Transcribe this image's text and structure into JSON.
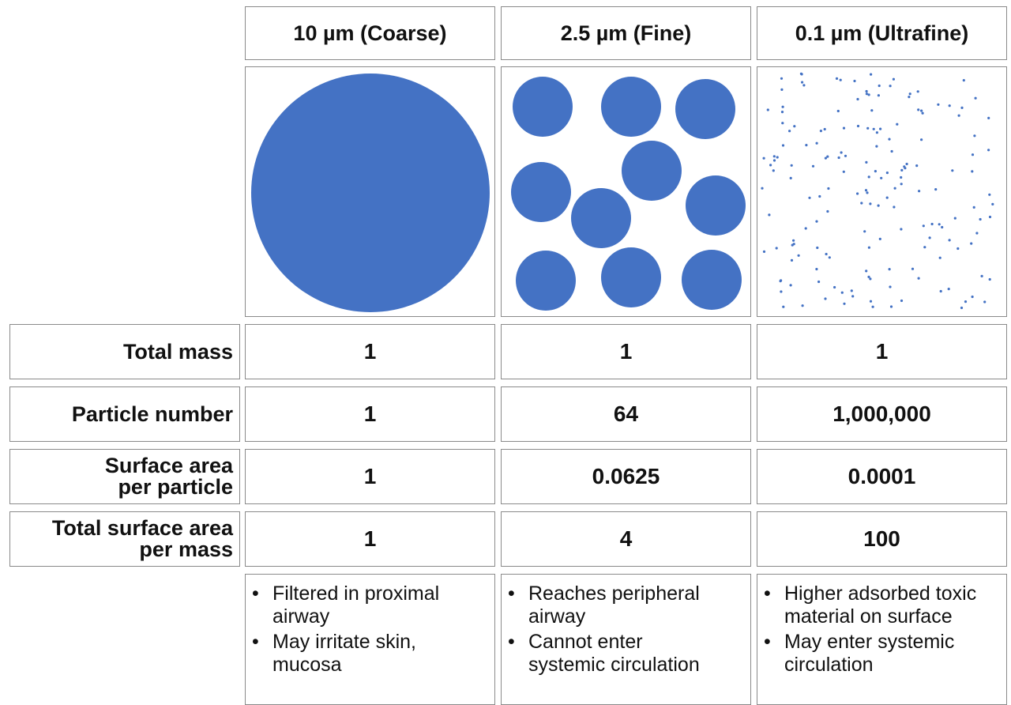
{
  "columns": [
    {
      "header": "10 µm (Coarse)"
    },
    {
      "header": "2.5 µm (Fine)"
    },
    {
      "header": "0.1 µm (Ultrafine)"
    }
  ],
  "particle_color": "#4472C4",
  "rows": [
    {
      "label": [
        "Total mass"
      ],
      "values": [
        "1",
        "1",
        "1"
      ]
    },
    {
      "label": [
        "Particle number"
      ],
      "values": [
        "1",
        "64",
        "1,000,000"
      ]
    },
    {
      "label": [
        "Surface area",
        "per particle"
      ],
      "values": [
        "1",
        "0.0625",
        "0.0001"
      ]
    },
    {
      "label": [
        "Total surface area",
        "per mass"
      ],
      "values": [
        "1",
        "4",
        "100"
      ]
    }
  ],
  "notes": [
    [
      [
        "Filtered in proximal",
        "airway"
      ],
      [
        "May irritate skin,",
        "mucosa"
      ]
    ],
    [
      [
        "Reaches peripheral",
        "airway"
      ],
      [
        "Cannot enter",
        "systemic circulation"
      ]
    ],
    [
      [
        "Higher adsorbed toxic",
        "material on surface"
      ],
      [
        "May enter systemic",
        "circulation"
      ]
    ]
  ]
}
